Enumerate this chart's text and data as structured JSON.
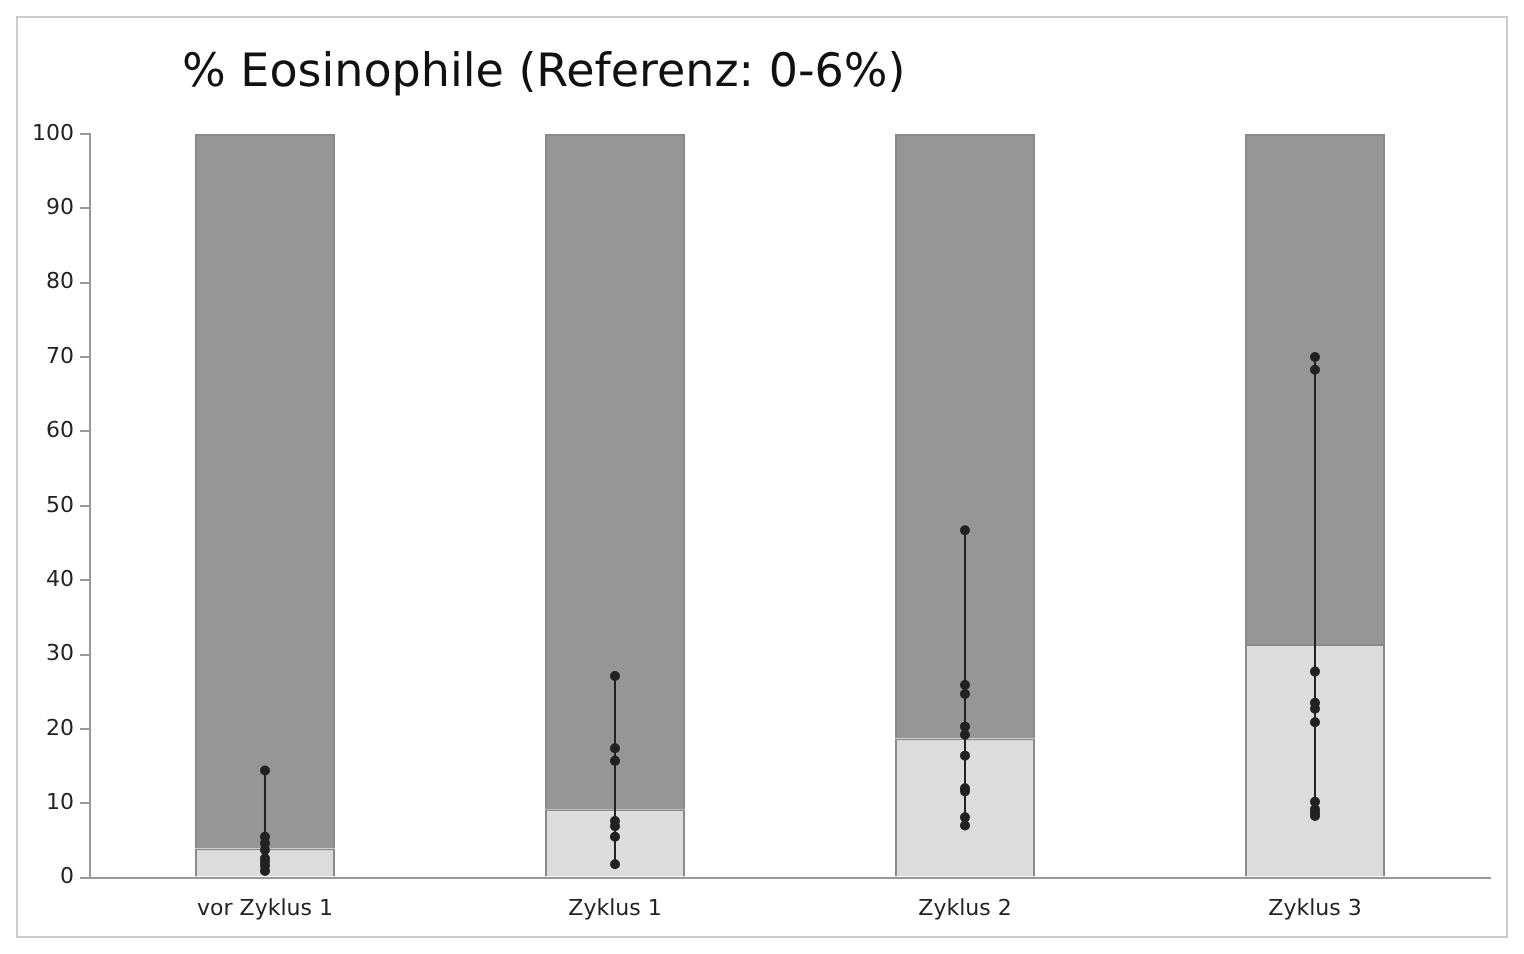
{
  "chart_data": {
    "type": "bar",
    "title": "% Eosinophile (Referenz: 0-6%)",
    "categories": [
      "vor Zyklus 1",
      "Zyklus 1",
      "Zyklus 2",
      "Zyklus 3"
    ],
    "stacked": true,
    "ylim": [
      0,
      100
    ],
    "yticks": [
      0,
      10,
      20,
      30,
      40,
      50,
      60,
      70,
      80,
      90,
      100
    ],
    "grid": false,
    "legend": false,
    "series": [
      {
        "color": "#dcdcdc",
        "values": [
          3.9,
          9.2,
          18.7,
          31.4
        ]
      },
      {
        "color": "#969696",
        "values": [
          96.1,
          90.8,
          81.3,
          68.6
        ]
      },
      {
        "type": "line",
        "color": "#222222",
        "marker": "none",
        "x": [
          "vor Zyklus 1",
          "vor Zyklus 1"
        ],
        "values": [
          0.9,
          14.4
        ]
      },
      {
        "type": "line",
        "color": "#222222",
        "marker": "none",
        "x": [
          "Zyklus 1",
          "Zyklus 1"
        ],
        "values": [
          1.8,
          27.1
        ]
      },
      {
        "type": "line",
        "color": "#222222",
        "marker": "none",
        "x": [
          "Zyklus 2",
          "Zyklus 2"
        ],
        "values": [
          7.0,
          46.7
        ]
      },
      {
        "type": "line",
        "color": "#222222",
        "marker": "none",
        "x": [
          "Zyklus 3",
          "Zyklus 3"
        ],
        "values": [
          8.3,
          70.0
        ]
      },
      {
        "type": "scatter",
        "color": "#222222",
        "marker": "circle",
        "x": [
          "vor Zyklus 1",
          "vor Zyklus 1",
          "vor Zyklus 1",
          "vor Zyklus 1",
          "vor Zyklus 1",
          "vor Zyklus 1",
          "vor Zyklus 1",
          "vor Zyklus 1",
          "Zyklus 1",
          "Zyklus 1",
          "Zyklus 1",
          "Zyklus 1",
          "Zyklus 1",
          "Zyklus 1",
          "Zyklus 1",
          "Zyklus 2",
          "Zyklus 2",
          "Zyklus 2",
          "Zyklus 2",
          "Zyklus 2",
          "Zyklus 2",
          "Zyklus 2",
          "Zyklus 2",
          "Zyklus 2",
          "Zyklus 2",
          "Zyklus 3",
          "Zyklus 3",
          "Zyklus 3",
          "Zyklus 3",
          "Zyklus 3",
          "Zyklus 3",
          "Zyklus 3",
          "Zyklus 3",
          "Zyklus 3",
          "Zyklus 3"
        ],
        "values": [
          14.4,
          5.5,
          4.6,
          3.7,
          2.6,
          2.1,
          1.6,
          0.9,
          27.1,
          17.4,
          15.7,
          7.6,
          6.9,
          5.5,
          1.8,
          46.7,
          25.9,
          24.7,
          20.3,
          19.2,
          16.4,
          12.0,
          11.6,
          8.1,
          7.0,
          70.0,
          68.3,
          27.7,
          23.5,
          22.7,
          20.9,
          10.2,
          9.2,
          8.7,
          8.3
        ]
      }
    ]
  }
}
